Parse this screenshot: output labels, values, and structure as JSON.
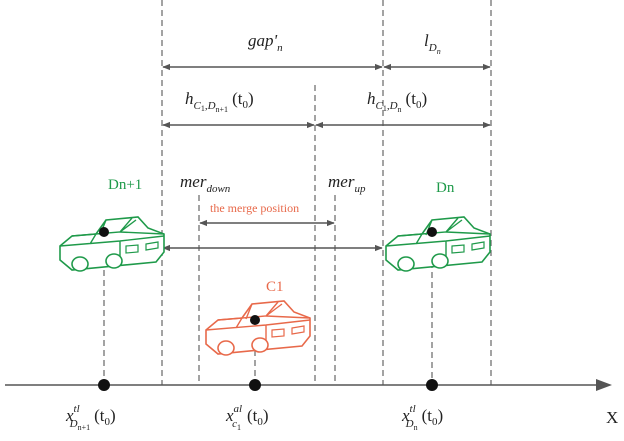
{
  "diagram": {
    "gap": {
      "main": "gap'",
      "sub": "n"
    },
    "length": {
      "main": "l",
      "sub": "D",
      "subsub": "n"
    },
    "headway_next": {
      "main": "h",
      "sub": "C",
      "subsub": "1",
      "sub2": ",D",
      "subsub2": "n+1",
      "arg": "(t",
      "argsub": "0",
      "close": ")"
    },
    "headway_lead": {
      "main": "h",
      "sub": "C",
      "subsub": "1",
      "sub2": ",D",
      "subsub2": "n",
      "arg": "(t",
      "argsub": "0",
      "close": ")"
    },
    "mer_down": {
      "main": "mer",
      "sub": "down"
    },
    "mer_up": {
      "main": "mer",
      "sub": "up"
    },
    "merge_position": "the merge position",
    "vehicle_next": "Dn+1",
    "vehicle_lead": "Dn",
    "vehicle_merge": "C1",
    "x_next": {
      "main": "x",
      "sup": "tl",
      "sub": "D",
      "subsub": "n+1",
      "arg": "(t",
      "argsub": "0",
      "close": ")"
    },
    "x_merge": {
      "main": "x",
      "sup": "al",
      "sub": "c",
      "subsub": "1",
      "arg": "(t",
      "argsub": "0",
      "close": ")"
    },
    "x_lead": {
      "main": "x",
      "sup": "tl",
      "sub": "D",
      "subsub": "n",
      "arg": "(t",
      "argsub": "0",
      "close": ")"
    },
    "axis_label": "X"
  }
}
